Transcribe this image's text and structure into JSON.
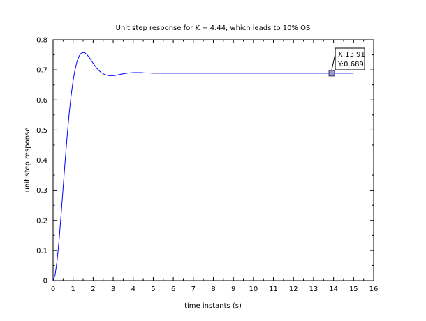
{
  "chart_data": {
    "type": "line",
    "title": "Unit step response for K = 4.44, which leads to 10% OS",
    "xlabel": "time instants (s)",
    "ylabel": "unit step response",
    "xlim": [
      0,
      16
    ],
    "ylim": [
      0,
      0.8
    ],
    "xticks": [
      "0",
      "1",
      "2",
      "3",
      "4",
      "5",
      "6",
      "7",
      "8",
      "9",
      "10",
      "11",
      "12",
      "13",
      "14",
      "15",
      "16"
    ],
    "yticks": [
      "0",
      "0.1",
      "0.2",
      "0.3",
      "0.4",
      "0.5",
      "0.6",
      "0.7",
      "0.8"
    ],
    "grid": false,
    "series": [
      {
        "color": "#0000ff",
        "x": [
          0,
          0.1,
          0.2,
          0.3,
          0.4,
          0.5,
          0.6,
          0.7,
          0.8,
          0.9,
          1.0,
          1.1,
          1.2,
          1.3,
          1.4,
          1.5,
          1.6,
          1.7,
          1.8,
          1.9,
          2.0,
          2.2,
          2.4,
          2.6,
          2.8,
          3.0,
          3.2,
          3.4,
          3.6,
          3.8,
          4.0,
          4.2,
          4.4,
          4.6,
          4.8,
          5.0,
          5.5,
          6,
          7,
          8,
          9,
          10,
          11,
          12,
          13,
          14,
          15
        ],
        "y": [
          0,
          0.018,
          0.066,
          0.135,
          0.218,
          0.307,
          0.395,
          0.478,
          0.552,
          0.614,
          0.664,
          0.702,
          0.729,
          0.746,
          0.755,
          0.758,
          0.756,
          0.75,
          0.742,
          0.732,
          0.722,
          0.704,
          0.691,
          0.684,
          0.681,
          0.681,
          0.683,
          0.686,
          0.688,
          0.69,
          0.691,
          0.691,
          0.691,
          0.69,
          0.69,
          0.689,
          0.689,
          0.689,
          0.689,
          0.689,
          0.689,
          0.689,
          0.689,
          0.689,
          0.689,
          0.689,
          0.689
        ]
      }
    ],
    "datatip": {
      "x": 13.91,
      "y": 0.689,
      "x_text": "X:13.91",
      "y_text": "Y:0.689",
      "marker_color": "#9999cc"
    }
  }
}
